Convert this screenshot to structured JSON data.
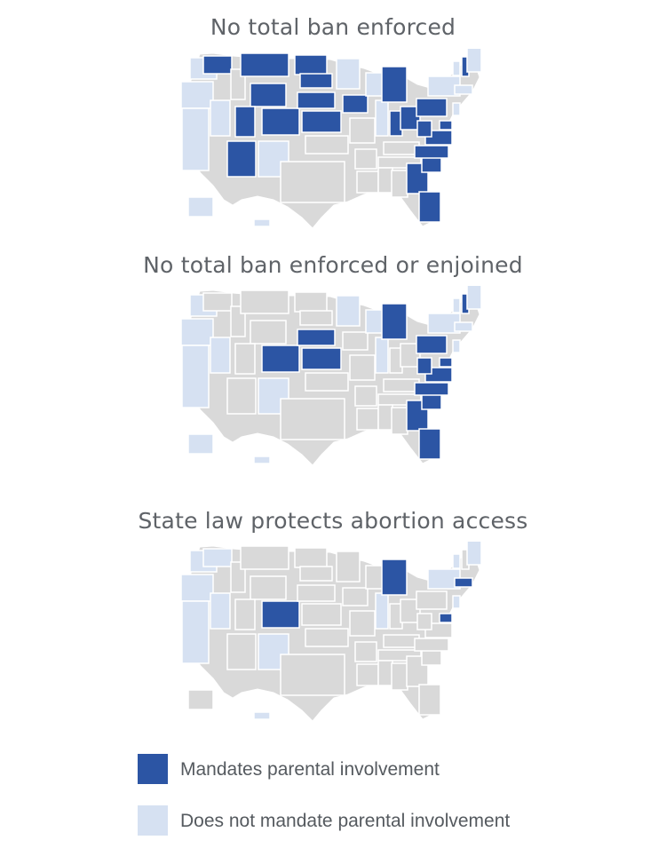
{
  "colors": {
    "mandates": "#2c55a4",
    "does_not_mandate": "#d6e1f2",
    "other": "#d9d9d9",
    "border": "#ffffff"
  },
  "maps": [
    {
      "title": "No total ban enforced",
      "mandates": [
        "WA_N",
        "MT",
        "ND",
        "WY",
        "SD_NE",
        "NE",
        "IA",
        "UT",
        "CO",
        "KS",
        "AZ",
        "MI",
        "OH",
        "IN",
        "PA",
        "NC",
        "SC",
        "GA",
        "FL",
        "VA",
        "MD",
        "NH",
        "WV"
      ],
      "does_not_mandate": [
        "WA",
        "OR",
        "CA",
        "NV",
        "NM",
        "MN",
        "IL",
        "NY",
        "VT",
        "ME",
        "CT_RI_MA",
        "NJ",
        "AK",
        "HI",
        "WI_N"
      ]
    },
    {
      "title": "No total ban enforced or enjoined",
      "mandates": [
        "CO",
        "KS",
        "NE",
        "MI",
        "PA",
        "NC",
        "SC",
        "GA",
        "FL",
        "VA",
        "MD",
        "NH",
        "WV"
      ],
      "does_not_mandate": [
        "WA",
        "OR",
        "CA",
        "NV",
        "NM",
        "MN",
        "IL",
        "NY",
        "VT",
        "ME",
        "CT_RI_MA",
        "NJ",
        "AK",
        "HI",
        "WI_N"
      ]
    },
    {
      "title": "State law protects abortion access",
      "mandates": [
        "CO",
        "MI",
        "MD",
        "CT_RI_MA"
      ],
      "does_not_mandate": [
        "WA",
        "OR",
        "CA",
        "NV",
        "NM",
        "IL",
        "NY",
        "VT",
        "ME",
        "NJ",
        "HI",
        "WA_N"
      ]
    }
  ],
  "legend": [
    {
      "key": "mandates",
      "label": "Mandates parental involvement"
    },
    {
      "key": "does_not_mandate",
      "label": "Does not mandate parental involvement"
    }
  ]
}
